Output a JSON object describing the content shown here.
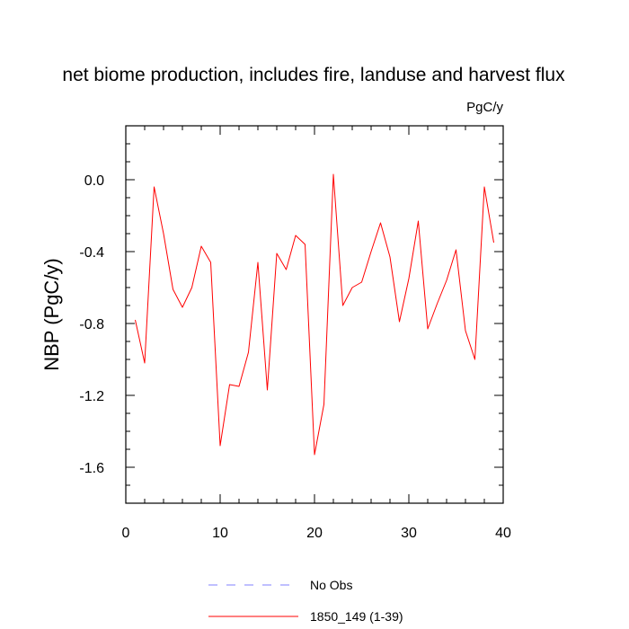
{
  "chart_data": {
    "type": "line",
    "title": "net biome production, includes fire, landuse and harvest flux",
    "units": "PgC/y",
    "ylabel": "NBP  (PgC/y)",
    "xlabel": "",
    "xlim": [
      0,
      40
    ],
    "ylim": [
      -1.8,
      0.3
    ],
    "x_ticks": [
      0,
      10,
      20,
      30,
      40
    ],
    "y_ticks": [
      0.0,
      -0.4,
      -0.8,
      -1.2,
      -1.6
    ],
    "y_tick_labels": [
      "0.0",
      "-0.4",
      "-0.8",
      "-1.2",
      "-1.6"
    ],
    "grid": false,
    "legend_position": "bottom-center",
    "series": [
      {
        "name": "No Obs",
        "color": "#8080ff",
        "dash": "dashed",
        "x": [],
        "values": []
      },
      {
        "name": "1850_149 (1-39)",
        "color": "#ff0000",
        "dash": "solid",
        "x": [
          1,
          2,
          3,
          4,
          5,
          6,
          7,
          8,
          9,
          10,
          11,
          12,
          13,
          14,
          15,
          16,
          17,
          18,
          19,
          20,
          21,
          22,
          23,
          24,
          25,
          26,
          27,
          28,
          29,
          30,
          31,
          32,
          33,
          34,
          35,
          36,
          37,
          38,
          39
        ],
        "values": [
          -0.78,
          -1.02,
          -0.04,
          -0.3,
          -0.61,
          -0.71,
          -0.6,
          -0.37,
          -0.46,
          -1.48,
          -1.14,
          -1.15,
          -0.96,
          -0.46,
          -1.17,
          -0.41,
          -0.5,
          -0.31,
          -0.36,
          -1.53,
          -1.25,
          0.03,
          -0.7,
          -0.6,
          -0.57,
          -0.4,
          -0.24,
          -0.43,
          -0.79,
          -0.55,
          -0.23,
          -0.83,
          -0.69,
          -0.56,
          -0.39,
          -0.84,
          -1.0,
          -0.04,
          -0.35
        ]
      }
    ]
  }
}
